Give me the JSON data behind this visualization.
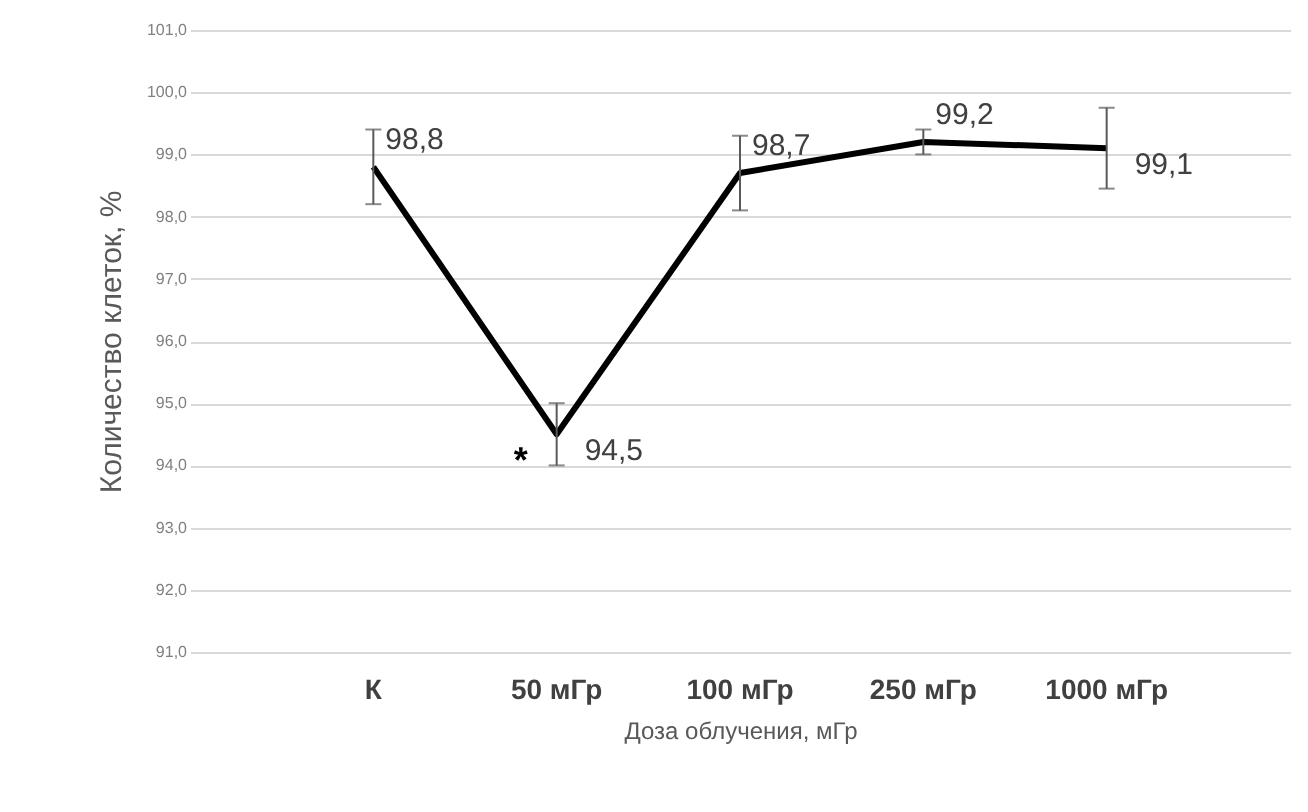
{
  "chart_data": {
    "type": "line",
    "xlabel": "Доза облучения, мГр",
    "ylabel": "Количество клеток, %",
    "categories": [
      "К",
      "50 мГр",
      "100 мГр",
      "250 мГр",
      "1000 мГр"
    ],
    "series": [
      {
        "color": "#000000",
        "values": [
          98.8,
          94.5,
          98.7,
          99.2,
          99.1
        ],
        "errors": [
          0.6,
          0.5,
          0.6,
          0.2,
          0.65
        ],
        "value_labels": [
          "98,8",
          "94,5",
          "98,7",
          "99,2",
          "99,1"
        ]
      }
    ],
    "ylim": [
      91,
      101
    ],
    "yticks": [
      {
        "value": 91,
        "label": "91,0"
      },
      {
        "value": 92,
        "label": "92,0"
      },
      {
        "value": 93,
        "label": "93,0"
      },
      {
        "value": 94,
        "label": "94,0"
      },
      {
        "value": 95,
        "label": "95,0"
      },
      {
        "value": 96,
        "label": "96,0"
      },
      {
        "value": 97,
        "label": "97,0"
      },
      {
        "value": 98,
        "label": "98,0"
      },
      {
        "value": 99,
        "label": "99,0"
      },
      {
        "value": 100,
        "label": "100,0"
      },
      {
        "value": 101,
        "label": "101,0"
      }
    ],
    "grid": "y",
    "marker": "none",
    "line_style": "solid",
    "annotations": [
      {
        "text": "*",
        "x": "50 мГр",
        "y": 94.5
      }
    ]
  }
}
